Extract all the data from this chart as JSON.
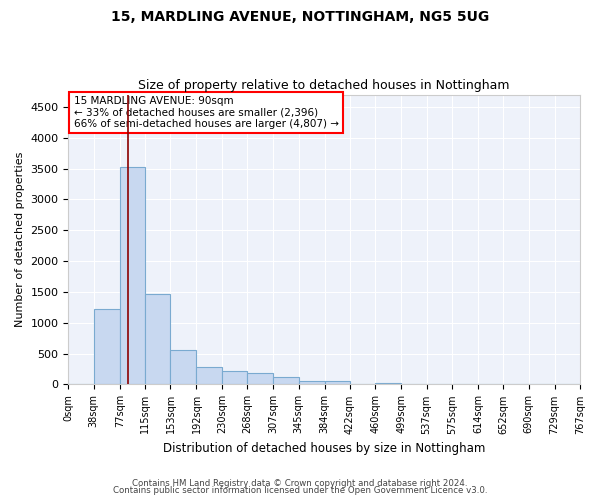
{
  "title1": "15, MARDLING AVENUE, NOTTINGHAM, NG5 5UG",
  "title2": "Size of property relative to detached houses in Nottingham",
  "xlabel": "Distribution of detached houses by size in Nottingham",
  "ylabel": "Number of detached properties",
  "annotation_title": "15 MARDLING AVENUE: 90sqm",
  "annotation_line1": "← 33% of detached houses are smaller (2,396)",
  "annotation_line2": "66% of semi-detached houses are larger (4,807) →",
  "bar_fill_color": "#c8d8f0",
  "bar_edge_color": "#7aaad0",
  "redline_x": 90,
  "footer1": "Contains HM Land Registry data © Crown copyright and database right 2024.",
  "footer2": "Contains public sector information licensed under the Open Government Licence v3.0.",
  "bins": [
    0,
    38,
    77,
    115,
    153,
    192,
    230,
    268,
    307,
    345,
    384,
    422,
    460,
    499,
    537,
    575,
    614,
    652,
    690,
    729,
    767
  ],
  "counts": [
    10,
    1230,
    3520,
    1470,
    560,
    290,
    210,
    190,
    120,
    60,
    50,
    10,
    30,
    0,
    0,
    0,
    0,
    0,
    0,
    0
  ],
  "ylim": [
    0,
    4700
  ],
  "yticks": [
    0,
    500,
    1000,
    1500,
    2000,
    2500,
    3000,
    3500,
    4000,
    4500
  ],
  "plot_bg_color": "#eef2fa"
}
